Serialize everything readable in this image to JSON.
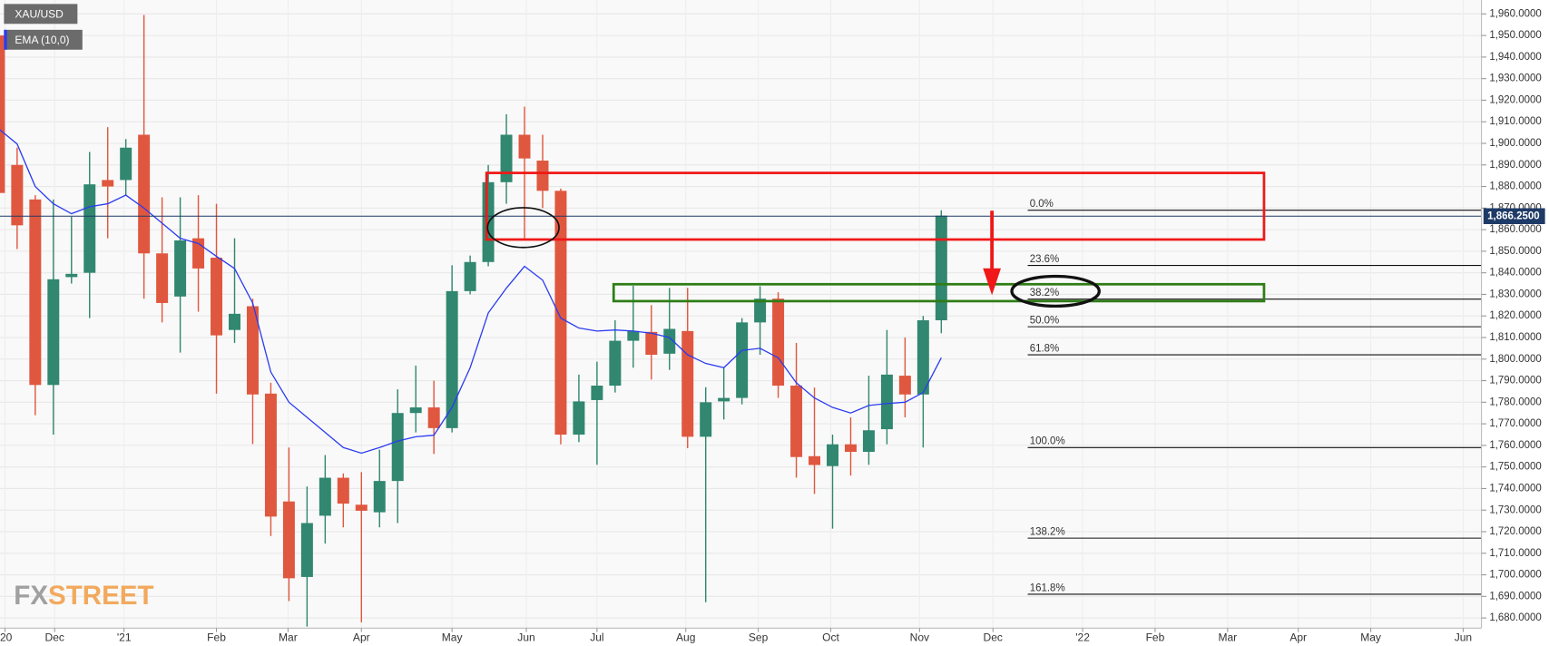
{
  "chart_data": {
    "type": "candlestick",
    "x": [
      0,
      1,
      2,
      3,
      4,
      5,
      6,
      7,
      8,
      9,
      10,
      11,
      12,
      13,
      14,
      15,
      16,
      17,
      18,
      19,
      20,
      21,
      22,
      23,
      24,
      25,
      26,
      27,
      28,
      29,
      30,
      31,
      32,
      33,
      34,
      35,
      36,
      37,
      38,
      39,
      40,
      41,
      42,
      43,
      44,
      45,
      46,
      47,
      48,
      49,
      50,
      51,
      52
    ],
    "series": [
      {
        "name": "XAU/USD",
        "type": "candlestick",
        "up_color": "#31876f",
        "down_color": "#e0573f",
        "open": [
          1950,
          1890,
          1874,
          1788,
          1838,
          1840,
          1883,
          1883,
          1904,
          1849,
          1829,
          1856,
          1847,
          1813.5,
          1824.5,
          1784,
          1734,
          1699,
          1727.4,
          1745,
          1732.5,
          1729,
          1743.5,
          1775,
          1777.6,
          1768,
          1831.5,
          1845,
          1882,
          1904,
          1892,
          1878,
          1765,
          1781,
          1787.7,
          1808.5,
          1812.6,
          1802.5,
          1813,
          1764,
          1780.4,
          1782,
          1817,
          1828,
          1787.7,
          1755,
          1750.4,
          1760.5,
          1757,
          1767.5,
          1792.3,
          1783.6,
          1818
        ],
        "high": [
          1966,
          1898,
          1876,
          1874,
          1866,
          1896,
          1907.5,
          1902,
          1959.5,
          1875,
          1875,
          1876,
          1872,
          1856,
          1828,
          1789,
          1759,
          1741,
          1755.5,
          1747,
          1747.6,
          1758,
          1786,
          1797,
          1790,
          1843.5,
          1848,
          1890,
          1913.5,
          1917,
          1904,
          1879,
          1792.8,
          1798.8,
          1818,
          1834,
          1825,
          1833,
          1833,
          1787,
          1796,
          1819,
          1833.8,
          1831,
          1807.5,
          1786.8,
          1765,
          1773,
          1792.3,
          1813.5,
          1810,
          1820,
          1869
        ],
        "low": [
          1850,
          1851,
          1774,
          1765,
          1835,
          1819,
          1856,
          1876,
          1828,
          1817,
          1803,
          1822,
          1784,
          1807.5,
          1760.6,
          1718,
          1687.8,
          1676,
          1714.5,
          1722,
          1678,
          1722,
          1724,
          1766,
          1756,
          1766,
          1830,
          1843,
          1872,
          1856,
          1870,
          1760.5,
          1761.5,
          1751,
          1784.5,
          1796,
          1790.5,
          1795,
          1758.7,
          1687.3,
          1772,
          1779,
          1802,
          1782,
          1745,
          1737.5,
          1721.4,
          1746,
          1751,
          1760.5,
          1773,
          1759,
          1812
        ],
        "close": [
          1877,
          1862,
          1788,
          1837,
          1839.5,
          1881,
          1880,
          1898,
          1849,
          1826,
          1855,
          1842,
          1811,
          1821,
          1783.6,
          1727,
          1698.4,
          1724,
          1745,
          1733,
          1729.7,
          1743.5,
          1775,
          1777.6,
          1768,
          1831.5,
          1845,
          1882,
          1904,
          1893,
          1878,
          1765,
          1780.4,
          1787.7,
          1808.5,
          1813,
          1802,
          1814,
          1764,
          1780,
          1782,
          1817,
          1828,
          1787.7,
          1754.6,
          1750.9,
          1760.5,
          1757,
          1767,
          1792.8,
          1783.6,
          1818,
          1866.5
        ]
      },
      {
        "name": "EMA (10,0)",
        "type": "line",
        "color": "#2b3cf0",
        "values": [
          1906.6,
          1899.7,
          1880,
          1872,
          1867.4,
          1870.6,
          1872,
          1876,
          1870,
          1863,
          1856,
          1853.6,
          1847.6,
          1842,
          1826,
          1794,
          1780,
          1773,
          1766,
          1759,
          1756.4,
          1759,
          1762,
          1764,
          1764.7,
          1777.6,
          1796,
          1821.4,
          1832.9,
          1843,
          1836.6,
          1819,
          1814.4,
          1813,
          1813.5,
          1813,
          1812,
          1810,
          1802,
          1798,
          1796,
          1804,
          1805,
          1800.6,
          1789,
          1782,
          1777.6,
          1775,
          1778.5,
          1779.4,
          1780,
          1784.5,
          1800.6
        ]
      }
    ],
    "xlim": [
      0.055,
      81.81
    ],
    "xticks": [
      {
        "value": 0.33,
        "label": "'20"
      },
      {
        "value": 3.07,
        "label": "Dec"
      },
      {
        "value": 6.9,
        "label": "'21"
      },
      {
        "value": 12.0,
        "label": "Feb"
      },
      {
        "value": 15.95,
        "label": "Mar"
      },
      {
        "value": 20.0,
        "label": "Apr"
      },
      {
        "value": 25.0,
        "label": "May"
      },
      {
        "value": 29.1,
        "label": "Jun"
      },
      {
        "value": 33.0,
        "label": "Jul"
      },
      {
        "value": 37.9,
        "label": "Aug"
      },
      {
        "value": 41.9,
        "label": "Sep"
      },
      {
        "value": 45.9,
        "label": "Oct"
      },
      {
        "value": 50.8,
        "label": "Nov"
      },
      {
        "value": 54.85,
        "label": "Dec"
      },
      {
        "value": 59.8,
        "label": "'22"
      },
      {
        "value": 63.8,
        "label": "Feb"
      },
      {
        "value": 67.8,
        "label": "Mar"
      },
      {
        "value": 71.7,
        "label": "Apr"
      },
      {
        "value": 75.7,
        "label": "May"
      },
      {
        "value": 80.8,
        "label": "Jun"
      }
    ],
    "ylim": [
      1675.3,
      1966.45
    ],
    "yticks": [
      {
        "value": 1680,
        "label": "1,680.0000"
      },
      {
        "value": 1690,
        "label": "1,690.0000"
      },
      {
        "value": 1700,
        "label": "1,700.0000"
      },
      {
        "value": 1710,
        "label": "1,710.0000"
      },
      {
        "value": 1720,
        "label": "1,720.0000"
      },
      {
        "value": 1730,
        "label": "1,730.0000"
      },
      {
        "value": 1740,
        "label": "1,740.0000"
      },
      {
        "value": 1750,
        "label": "1,750.0000"
      },
      {
        "value": 1760,
        "label": "1,760.0000"
      },
      {
        "value": 1770,
        "label": "1,770.0000"
      },
      {
        "value": 1780,
        "label": "1,780.0000"
      },
      {
        "value": 1790,
        "label": "1,790.0000"
      },
      {
        "value": 1800,
        "label": "1,800.0000"
      },
      {
        "value": 1810,
        "label": "1,810.0000"
      },
      {
        "value": 1820,
        "label": "1,820.0000"
      },
      {
        "value": 1830,
        "label": "1,830.0000"
      },
      {
        "value": 1840,
        "label": "1,840.0000"
      },
      {
        "value": 1850,
        "label": "1,850.0000"
      },
      {
        "value": 1860,
        "label": "1,860.0000"
      },
      {
        "value": 1870,
        "label": "1,870.0000"
      },
      {
        "value": 1880,
        "label": "1,880.0000"
      },
      {
        "value": 1890,
        "label": "1,890.0000"
      },
      {
        "value": 1900,
        "label": "1,900.0000"
      },
      {
        "value": 1910,
        "label": "1,910.0000"
      },
      {
        "value": 1920,
        "label": "1,920.0000"
      },
      {
        "value": 1930,
        "label": "1,930.0000"
      },
      {
        "value": 1940,
        "label": "1,940.0000"
      },
      {
        "value": 1950,
        "label": "1,950.0000"
      },
      {
        "value": 1960,
        "label": "1,960.0000"
      }
    ],
    "grid": true,
    "last_price": {
      "value": 1866.25,
      "label": "1,866.2500"
    },
    "fib_levels": [
      {
        "value": 1869,
        "label": "0.0%"
      },
      {
        "value": 1843.4,
        "label": "23.6%"
      },
      {
        "value": 1827.8,
        "label": "38.2%"
      },
      {
        "value": 1815,
        "label": "50.0%"
      },
      {
        "value": 1802,
        "label": "61.8%"
      },
      {
        "value": 1759,
        "label": "100.0%"
      },
      {
        "value": 1717,
        "label": "138.2%"
      },
      {
        "value": 1691,
        "label": "161.8%"
      }
    ],
    "watermark": [
      "FX",
      "STREET"
    ]
  }
}
